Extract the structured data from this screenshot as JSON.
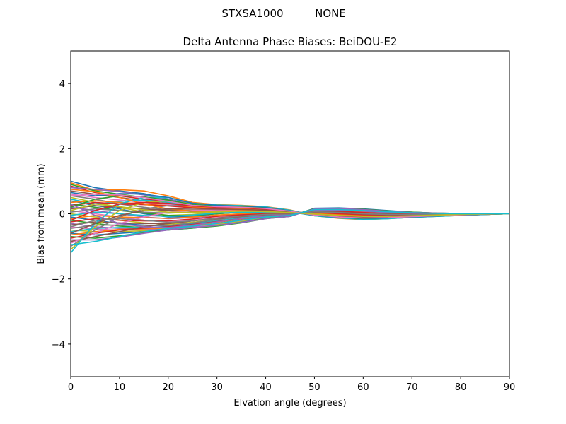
{
  "figure": {
    "suptitle_left": "STXSA1000",
    "suptitle_right": "NONE"
  },
  "chart_data": {
    "type": "line",
    "title": "Delta Antenna Phase Biases: BeiDOU-E2",
    "xlabel": "Elvation angle (degrees)",
    "ylabel": "Bias from mean (mm)",
    "xlim": [
      0,
      90
    ],
    "ylim": [
      -5,
      5
    ],
    "xticks": [
      0,
      10,
      20,
      30,
      40,
      50,
      60,
      70,
      80,
      90
    ],
    "yticks": [
      -4,
      -2,
      0,
      2,
      4
    ],
    "ytick_labels": [
      "−4",
      "−2",
      "0",
      "2",
      "4"
    ],
    "grid": false,
    "legend": "none",
    "x": [
      0,
      5,
      10,
      15,
      20,
      25,
      30,
      35,
      40,
      45,
      50,
      55,
      60,
      65,
      70,
      75,
      80,
      85,
      90
    ],
    "colors": [
      "#1f77b4",
      "#ff7f0e",
      "#2ca02c",
      "#d62728",
      "#9467bd",
      "#8c564b",
      "#e377c2",
      "#7f7f7f",
      "#bcbd22",
      "#17becf"
    ],
    "series": [
      {
        "values": [
          1.0,
          0.8,
          0.7,
          0.62,
          0.45,
          0.3,
          0.26,
          0.24,
          0.2,
          0.1,
          -0.05,
          -0.12,
          -0.16,
          -0.14,
          -0.1,
          -0.07,
          -0.04,
          -0.02,
          0.0
        ]
      },
      {
        "values": [
          0.95,
          0.72,
          0.74,
          0.7,
          0.55,
          0.35,
          0.28,
          0.26,
          0.22,
          0.12,
          -0.06,
          -0.14,
          -0.18,
          -0.15,
          -0.11,
          -0.08,
          -0.05,
          -0.02,
          0.0
        ]
      },
      {
        "values": [
          0.9,
          0.7,
          0.6,
          0.5,
          0.42,
          0.32,
          0.27,
          0.25,
          0.2,
          0.1,
          -0.04,
          -0.1,
          -0.14,
          -0.12,
          -0.09,
          -0.06,
          -0.03,
          -0.01,
          0.0
        ]
      },
      {
        "values": [
          0.85,
          0.65,
          0.55,
          0.45,
          0.38,
          0.28,
          0.24,
          0.22,
          0.18,
          0.08,
          -0.05,
          -0.11,
          -0.15,
          -0.13,
          -0.1,
          -0.07,
          -0.04,
          -0.02,
          0.0
        ]
      },
      {
        "values": [
          0.8,
          0.75,
          0.68,
          0.58,
          0.44,
          0.3,
          0.25,
          0.22,
          0.18,
          0.1,
          -0.03,
          -0.09,
          -0.13,
          -0.12,
          -0.09,
          -0.06,
          -0.03,
          -0.01,
          0.0
        ]
      },
      {
        "values": [
          0.7,
          0.6,
          0.5,
          0.4,
          0.3,
          0.22,
          0.2,
          0.18,
          0.15,
          0.08,
          -0.04,
          -0.1,
          -0.13,
          -0.12,
          -0.09,
          -0.06,
          -0.03,
          -0.01,
          0.0
        ]
      },
      {
        "values": [
          0.6,
          0.5,
          0.42,
          0.35,
          0.28,
          0.2,
          0.18,
          0.17,
          0.14,
          0.07,
          -0.05,
          -0.12,
          -0.16,
          -0.14,
          -0.1,
          -0.07,
          -0.04,
          -0.02,
          0.0
        ]
      },
      {
        "values": [
          0.55,
          0.45,
          0.3,
          0.2,
          0.12,
          0.08,
          0.1,
          0.12,
          0.1,
          0.06,
          -0.02,
          -0.08,
          -0.12,
          -0.11,
          -0.08,
          -0.05,
          -0.03,
          -0.01,
          0.0
        ]
      },
      {
        "values": [
          0.5,
          0.35,
          0.2,
          0.05,
          -0.05,
          -0.02,
          0.05,
          0.1,
          0.1,
          0.05,
          0.0,
          -0.06,
          -0.1,
          -0.09,
          -0.07,
          -0.05,
          -0.03,
          -0.01,
          0.0
        ]
      },
      {
        "values": [
          0.45,
          0.3,
          0.38,
          0.42,
          0.35,
          0.25,
          0.2,
          0.18,
          0.14,
          0.06,
          -0.06,
          -0.13,
          -0.17,
          -0.15,
          -0.11,
          -0.08,
          -0.05,
          -0.02,
          0.0
        ]
      },
      {
        "values": [
          0.4,
          0.25,
          0.15,
          0.0,
          -0.1,
          -0.08,
          0.0,
          0.05,
          0.08,
          0.04,
          0.02,
          -0.04,
          -0.08,
          -0.08,
          -0.06,
          -0.04,
          -0.02,
          -0.01,
          0.0
        ]
      },
      {
        "values": [
          0.35,
          0.4,
          0.35,
          0.3,
          0.25,
          0.2,
          0.18,
          0.15,
          0.12,
          0.06,
          -0.04,
          -0.1,
          -0.13,
          -0.12,
          -0.09,
          -0.06,
          -0.03,
          -0.01,
          0.0
        ]
      },
      {
        "values": [
          0.3,
          0.2,
          0.1,
          0.02,
          -0.05,
          -0.05,
          0.0,
          0.05,
          0.06,
          0.03,
          0.02,
          -0.03,
          -0.07,
          -0.07,
          -0.05,
          -0.04,
          -0.02,
          -0.01,
          0.0
        ]
      },
      {
        "values": [
          0.25,
          0.35,
          0.3,
          0.28,
          0.24,
          0.18,
          0.15,
          0.13,
          0.1,
          0.05,
          -0.03,
          -0.08,
          -0.11,
          -0.1,
          -0.08,
          -0.05,
          -0.03,
          -0.01,
          0.0
        ]
      },
      {
        "values": [
          0.2,
          0.1,
          0.0,
          -0.1,
          -0.15,
          -0.12,
          -0.05,
          0.0,
          0.03,
          0.02,
          0.04,
          0.0,
          -0.04,
          -0.05,
          -0.04,
          -0.03,
          -0.02,
          -0.01,
          0.0
        ]
      },
      {
        "values": [
          0.15,
          0.25,
          0.2,
          0.15,
          0.1,
          0.1,
          0.1,
          0.1,
          0.08,
          0.04,
          -0.02,
          -0.07,
          -0.1,
          -0.09,
          -0.07,
          -0.05,
          -0.03,
          -0.01,
          0.0
        ]
      },
      {
        "values": [
          0.1,
          0.0,
          -0.1,
          -0.2,
          -0.25,
          -0.2,
          -0.12,
          -0.05,
          0.0,
          0.0,
          0.06,
          0.04,
          0.0,
          -0.02,
          -0.02,
          -0.02,
          -0.01,
          0.0,
          0.0
        ]
      },
      {
        "values": [
          0.05,
          0.15,
          0.1,
          0.05,
          0.02,
          0.05,
          0.08,
          0.08,
          0.06,
          0.03,
          -0.01,
          -0.05,
          -0.08,
          -0.08,
          -0.06,
          -0.04,
          -0.02,
          -0.01,
          0.0
        ]
      },
      {
        "values": [
          0.0,
          -0.1,
          -0.2,
          -0.28,
          -0.32,
          -0.26,
          -0.18,
          -0.1,
          -0.03,
          -0.02,
          0.08,
          0.08,
          0.04,
          0.01,
          0.0,
          -0.01,
          -0.01,
          0.0,
          0.0
        ]
      },
      {
        "values": [
          -0.05,
          0.05,
          0.0,
          -0.05,
          -0.08,
          -0.04,
          0.02,
          0.05,
          0.04,
          0.02,
          0.0,
          -0.04,
          -0.07,
          -0.07,
          -0.05,
          -0.04,
          -0.02,
          -0.01,
          0.0
        ]
      },
      {
        "values": [
          -0.1,
          -0.2,
          -0.3,
          -0.35,
          -0.38,
          -0.3,
          -0.22,
          -0.14,
          -0.06,
          -0.03,
          0.1,
          0.1,
          0.07,
          0.03,
          0.01,
          0.0,
          0.0,
          0.0,
          0.0
        ]
      },
      {
        "values": [
          -0.15,
          -0.05,
          -0.1,
          -0.12,
          -0.14,
          -0.1,
          -0.04,
          0.0,
          0.02,
          0.01,
          0.02,
          -0.02,
          -0.05,
          -0.06,
          -0.05,
          -0.03,
          -0.02,
          -0.01,
          0.0
        ]
      },
      {
        "values": [
          -0.2,
          -0.3,
          -0.38,
          -0.42,
          -0.44,
          -0.36,
          -0.26,
          -0.17,
          -0.08,
          -0.04,
          0.12,
          0.13,
          0.1,
          0.05,
          0.02,
          0.01,
          0.0,
          0.0,
          0.0
        ]
      },
      {
        "values": [
          -0.25,
          -0.15,
          -0.2,
          -0.22,
          -0.22,
          -0.16,
          -0.08,
          -0.03,
          0.0,
          0.0,
          0.04,
          0.0,
          -0.03,
          -0.04,
          -0.04,
          -0.03,
          -0.02,
          -0.01,
          0.0
        ]
      },
      {
        "values": [
          -0.3,
          -0.4,
          -0.45,
          -0.48,
          -0.48,
          -0.4,
          -0.3,
          -0.2,
          -0.1,
          -0.05,
          0.14,
          0.15,
          0.12,
          0.07,
          0.03,
          0.01,
          0.0,
          0.0,
          0.0
        ]
      },
      {
        "values": [
          -0.35,
          -0.25,
          -0.28,
          -0.3,
          -0.3,
          -0.22,
          -0.13,
          -0.06,
          -0.02,
          -0.01,
          0.06,
          0.03,
          -0.01,
          -0.03,
          -0.03,
          -0.02,
          -0.01,
          0.0,
          0.0
        ]
      },
      {
        "values": [
          -0.4,
          -0.48,
          -0.5,
          -0.5,
          -0.5,
          -0.42,
          -0.32,
          -0.22,
          -0.12,
          -0.06,
          0.15,
          0.16,
          0.13,
          0.08,
          0.04,
          0.02,
          0.01,
          0.0,
          0.0
        ]
      },
      {
        "values": [
          -0.45,
          -0.35,
          -0.35,
          -0.36,
          -0.36,
          -0.28,
          -0.18,
          -0.1,
          -0.04,
          -0.02,
          0.08,
          0.05,
          0.01,
          -0.02,
          -0.02,
          -0.02,
          -0.01,
          0.0,
          0.0
        ]
      },
      {
        "values": [
          -0.5,
          -0.55,
          -0.55,
          -0.52,
          -0.5,
          -0.43,
          -0.34,
          -0.24,
          -0.13,
          -0.07,
          0.16,
          0.17,
          0.14,
          0.09,
          0.05,
          0.02,
          0.01,
          0.0,
          0.0
        ]
      },
      {
        "values": [
          -0.55,
          -0.45,
          -0.42,
          -0.42,
          -0.4,
          -0.32,
          -0.22,
          -0.13,
          -0.06,
          -0.03,
          0.1,
          0.07,
          0.03,
          0.0,
          -0.01,
          -0.01,
          -0.01,
          0.0,
          0.0
        ]
      },
      {
        "values": [
          -0.6,
          -0.65,
          -0.6,
          -0.55,
          -0.5,
          -0.44,
          -0.36,
          -0.26,
          -0.14,
          -0.08,
          0.17,
          0.18,
          0.15,
          0.1,
          0.05,
          0.02,
          0.01,
          0.0,
          0.0
        ]
      },
      {
        "values": [
          -0.65,
          -0.55,
          -0.48,
          -0.46,
          -0.44,
          -0.36,
          -0.26,
          -0.16,
          -0.08,
          -0.04,
          0.12,
          0.09,
          0.05,
          0.02,
          0.0,
          0.0,
          0.0,
          0.0,
          0.0
        ]
      },
      {
        "values": [
          -0.7,
          -0.75,
          -0.68,
          -0.58,
          -0.5,
          -0.44,
          -0.38,
          -0.28,
          -0.15,
          -0.08,
          0.16,
          0.17,
          0.14,
          0.09,
          0.05,
          0.02,
          0.01,
          0.0,
          0.0
        ]
      },
      {
        "values": [
          -0.75,
          -0.6,
          -0.5,
          -0.44,
          -0.4,
          -0.33,
          -0.24,
          -0.15,
          -0.08,
          -0.04,
          0.11,
          0.08,
          0.04,
          0.01,
          0.0,
          0.0,
          0.0,
          0.0,
          0.0
        ]
      },
      {
        "values": [
          -0.8,
          -0.8,
          -0.72,
          -0.6,
          -0.5,
          -0.42,
          -0.36,
          -0.27,
          -0.15,
          -0.08,
          0.15,
          0.16,
          0.13,
          0.08,
          0.04,
          0.02,
          0.01,
          0.0,
          0.0
        ]
      },
      {
        "values": [
          -0.85,
          -0.7,
          -0.55,
          -0.4,
          -0.3,
          -0.22,
          -0.15,
          -0.08,
          -0.03,
          -0.01,
          0.08,
          0.05,
          0.01,
          -0.01,
          -0.02,
          -0.01,
          -0.01,
          0.0,
          0.0
        ]
      },
      {
        "values": [
          -0.9,
          -0.6,
          -0.3,
          -0.1,
          0.05,
          0.1,
          0.12,
          0.12,
          0.1,
          0.05,
          -0.02,
          -0.07,
          -0.1,
          -0.09,
          -0.07,
          -0.05,
          -0.03,
          -0.01,
          0.0
        ]
      },
      {
        "values": [
          -1.0,
          -0.5,
          -0.1,
          0.15,
          0.25,
          0.25,
          0.22,
          0.2,
          0.16,
          0.08,
          -0.04,
          -0.1,
          -0.14,
          -0.12,
          -0.09,
          -0.06,
          -0.03,
          -0.01,
          0.0
        ]
      },
      {
        "values": [
          -1.1,
          -0.4,
          0.1,
          0.35,
          0.4,
          0.3,
          0.26,
          0.24,
          0.2,
          0.1,
          -0.05,
          -0.12,
          -0.16,
          -0.14,
          -0.1,
          -0.07,
          -0.04,
          -0.02,
          0.0
        ]
      },
      {
        "values": [
          -1.2,
          -0.3,
          0.3,
          0.5,
          0.5,
          0.32,
          0.27,
          0.25,
          0.21,
          0.11,
          -0.06,
          -0.13,
          -0.17,
          -0.15,
          -0.11,
          -0.08,
          -0.05,
          -0.02,
          0.0
        ]
      },
      {
        "values": [
          0.65,
          0.55,
          0.62,
          0.6,
          0.5,
          0.32,
          0.26,
          0.23,
          0.19,
          0.09,
          -0.05,
          -0.11,
          -0.15,
          -0.13,
          -0.1,
          -0.07,
          -0.04,
          -0.02,
          0.0
        ]
      },
      {
        "values": [
          0.75,
          0.68,
          0.5,
          0.3,
          0.15,
          0.08,
          0.08,
          0.1,
          0.1,
          0.05,
          -0.01,
          -0.06,
          -0.1,
          -0.09,
          -0.07,
          -0.05,
          -0.03,
          -0.01,
          0.0
        ]
      },
      {
        "values": [
          0.2,
          0.45,
          0.55,
          0.52,
          0.42,
          0.28,
          0.23,
          0.21,
          0.17,
          0.08,
          -0.04,
          -0.1,
          -0.14,
          -0.12,
          -0.09,
          -0.06,
          -0.03,
          -0.01,
          0.0
        ]
      },
      {
        "values": [
          -0.2,
          0.1,
          0.3,
          0.35,
          0.32,
          0.24,
          0.2,
          0.18,
          0.14,
          0.07,
          -0.03,
          -0.09,
          -0.12,
          -0.11,
          -0.08,
          -0.05,
          -0.03,
          -0.01,
          0.0
        ]
      },
      {
        "values": [
          0.3,
          -0.05,
          -0.3,
          -0.4,
          -0.42,
          -0.35,
          -0.25,
          -0.15,
          -0.07,
          -0.03,
          0.11,
          0.11,
          0.08,
          0.04,
          0.02,
          0.01,
          0.0,
          0.0,
          0.0
        ]
      },
      {
        "values": [
          -0.6,
          -0.3,
          -0.05,
          0.1,
          0.15,
          0.14,
          0.14,
          0.13,
          0.11,
          0.05,
          -0.02,
          -0.07,
          -0.1,
          -0.09,
          -0.07,
          -0.05,
          -0.03,
          -0.01,
          0.0
        ]
      },
      {
        "values": [
          0.55,
          0.6,
          0.58,
          0.5,
          0.38,
          0.26,
          0.22,
          0.2,
          0.16,
          0.08,
          -0.04,
          -0.1,
          -0.13,
          -0.12,
          -0.09,
          -0.06,
          -0.03,
          -0.01,
          0.0
        ]
      },
      {
        "values": [
          -0.4,
          -0.2,
          -0.15,
          -0.2,
          -0.26,
          -0.22,
          -0.14,
          -0.07,
          -0.02,
          -0.01,
          0.06,
          0.04,
          0.0,
          -0.02,
          -0.02,
          -0.02,
          -0.01,
          0.0,
          0.0
        ]
      },
      {
        "values": [
          0.1,
          0.3,
          0.22,
          0.12,
          0.05,
          0.04,
          0.06,
          0.08,
          0.07,
          0.04,
          -0.01,
          -0.05,
          -0.08,
          -0.08,
          -0.06,
          -0.04,
          -0.02,
          -0.01,
          0.0
        ]
      },
      {
        "values": [
          -0.95,
          -0.85,
          -0.7,
          -0.55,
          -0.45,
          -0.38,
          -0.3,
          -0.2,
          -0.1,
          -0.05,
          0.13,
          0.13,
          0.1,
          0.06,
          0.03,
          0.01,
          0.0,
          0.0,
          0.0
        ]
      }
    ]
  }
}
